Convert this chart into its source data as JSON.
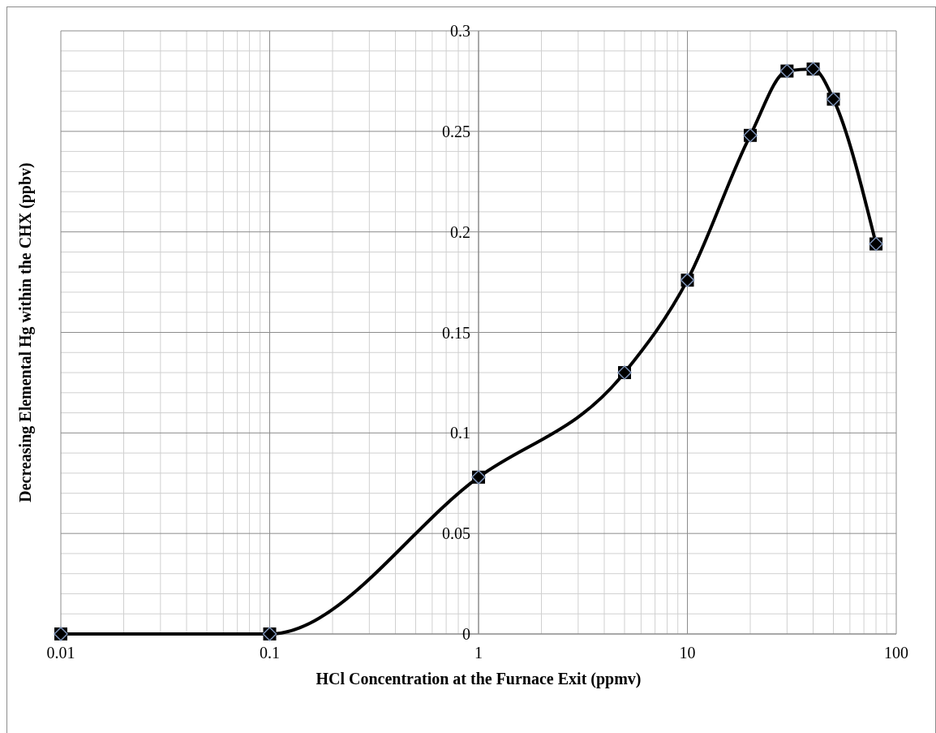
{
  "chart_data": {
    "type": "line",
    "xlabel": "HCl Concentration at the Furnace Exit (ppmv)",
    "ylabel": "Decreasing Elemental Hg within the CHX (ppbv)",
    "x": [
      0.01,
      0.1,
      1,
      5,
      10,
      20,
      30,
      40,
      50,
      80
    ],
    "series": [
      {
        "color": "#000000",
        "values": [
          0,
          0,
          0.078,
          0.13,
          0.176,
          0.248,
          0.28,
          0.281,
          0.266,
          0.194
        ]
      }
    ],
    "log": "x",
    "xlim": [
      0.01,
      100
    ],
    "xticks": [
      0.01,
      0.1,
      1,
      10,
      100
    ],
    "ylim": [
      0,
      0.3
    ],
    "yticks": [
      0,
      0.05,
      0.1,
      0.15,
      0.2,
      0.25,
      0.3
    ],
    "grid": true,
    "marker": "square",
    "line_style": "solid"
  }
}
